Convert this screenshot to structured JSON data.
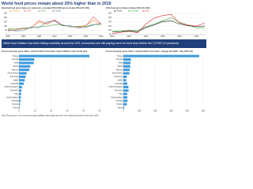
{
  "title": "World food prices remain about 20% higher than in 2019",
  "banner": "While food inflation has been falling modestly across the G20, economies are still paying more for food than before the COVID-19 pandemic",
  "note": "Note: Recent price = the most recent data available; latest data may refer to the highest food price levels since 2019.",
  "chart_data": [
    {
      "type": "line",
      "subtitle": "Nominal food price index, by subsector, constant 2014 USD prices (index 2014-16=100)",
      "x": [
        2000,
        2002,
        2004,
        2006,
        2008,
        2010,
        2012,
        2014,
        2016,
        2018,
        2020,
        2022,
        2024
      ],
      "xlim": [
        2000,
        2024
      ],
      "xticks": [
        2000,
        2004,
        2008,
        2012,
        2016,
        2020,
        2024
      ],
      "ylim": [
        0,
        250
      ],
      "yticks": [
        0,
        50,
        100,
        150,
        200,
        250
      ],
      "grid": true,
      "series": [
        {
          "name": "Cereals",
          "color": "#f28e2b",
          "values": [
            62,
            68,
            75,
            82,
            150,
            120,
            170,
            115,
            92,
            98,
            105,
            170,
            115
          ]
        },
        {
          "name": "Fats",
          "color": "#e15759",
          "values": [
            45,
            55,
            70,
            78,
            165,
            130,
            175,
            110,
            95,
            85,
            100,
            210,
            125
          ]
        },
        {
          "name": "Meat",
          "color": "#59a14f",
          "values": [
            70,
            65,
            78,
            80,
            95,
            100,
            115,
            118,
            92,
            95,
            95,
            120,
            118
          ]
        },
        {
          "name": "Sugar",
          "color": "#4e79a7",
          "values": [
            55,
            45,
            48,
            90,
            80,
            150,
            160,
            105,
            105,
            80,
            85,
            115,
            135
          ]
        }
      ]
    },
    {
      "type": "line",
      "subtitle": "FAO food price indices (index 2014-16=100)",
      "x": [
        2019,
        2019.5,
        2020,
        2020.5,
        2021,
        2021.5,
        2022,
        2022.5,
        2023,
        2023.5,
        2024,
        2024.5
      ],
      "xlim": [
        2019,
        2024.5
      ],
      "xticks": [
        2019,
        2020,
        2021,
        2022,
        2023,
        2024
      ],
      "ylim": [
        80,
        180
      ],
      "yticks": [
        80,
        100,
        120,
        140,
        160,
        180
      ],
      "grid": true,
      "series": [
        {
          "name": "Food",
          "color": "#222222",
          "values": [
            93,
            95,
            98,
            94,
            113,
            126,
            141,
            145,
            130,
            122,
            118,
            121
          ]
        },
        {
          "name": "Cereals",
          "color": "#2ca02c",
          "values": [
            95,
            97,
            100,
            98,
            118,
            130,
            145,
            160,
            138,
            125,
            112,
            113
          ]
        },
        {
          "name": "Oils",
          "color": "#d62728",
          "values": [
            85,
            90,
            96,
            88,
            130,
            158,
            170,
            175,
            135,
            125,
            120,
            135
          ]
        }
      ]
    },
    {
      "type": "bar",
      "orientation": "horizontal",
      "subtitle": "Food consumer price index, selected G20 economies, latest inflation and month (y/y)",
      "color": "#3d9be0",
      "categories": [
        "Turkey",
        "Russia",
        "India",
        "Brazil",
        "Mexico",
        "South Africa",
        "Indonesia",
        "Japan",
        "Australia",
        "United Kingdom",
        "Germany",
        "Italy",
        "United States",
        "Canada",
        "France",
        "China"
      ],
      "values": [
        43.7,
        9.5,
        9.2,
        7.0,
        6.4,
        4.7,
        4.1,
        3.6,
        3.0,
        1.9,
        1.6,
        1.4,
        1.2,
        1.0,
        0.6,
        0.4
      ],
      "xlim": [
        0,
        50
      ],
      "xticks": [
        0,
        10,
        20,
        30,
        40,
        50
      ],
      "grid": true
    },
    {
      "type": "bar",
      "orientation": "horizontal",
      "subtitle": "Food consumer price index, selected G20 economies, change Jan 2020 - Sep 2024 (%)",
      "color": "#3d9be0",
      "categories": [
        "Turkey",
        "Russia",
        "India",
        "Brazil",
        "Mexico",
        "South Africa",
        "Indonesia",
        "Japan",
        "Australia",
        "United Kingdom",
        "Germany",
        "Italy",
        "United States",
        "Canada",
        "France",
        "China"
      ],
      "values": [
        475,
        48,
        45,
        44,
        40,
        38,
        22,
        18,
        25,
        32,
        33,
        24,
        25,
        26,
        22,
        6
      ],
      "xlim": [
        0,
        500
      ],
      "xticks": [
        0,
        100,
        200,
        300,
        400,
        500
      ],
      "grid": true
    }
  ]
}
